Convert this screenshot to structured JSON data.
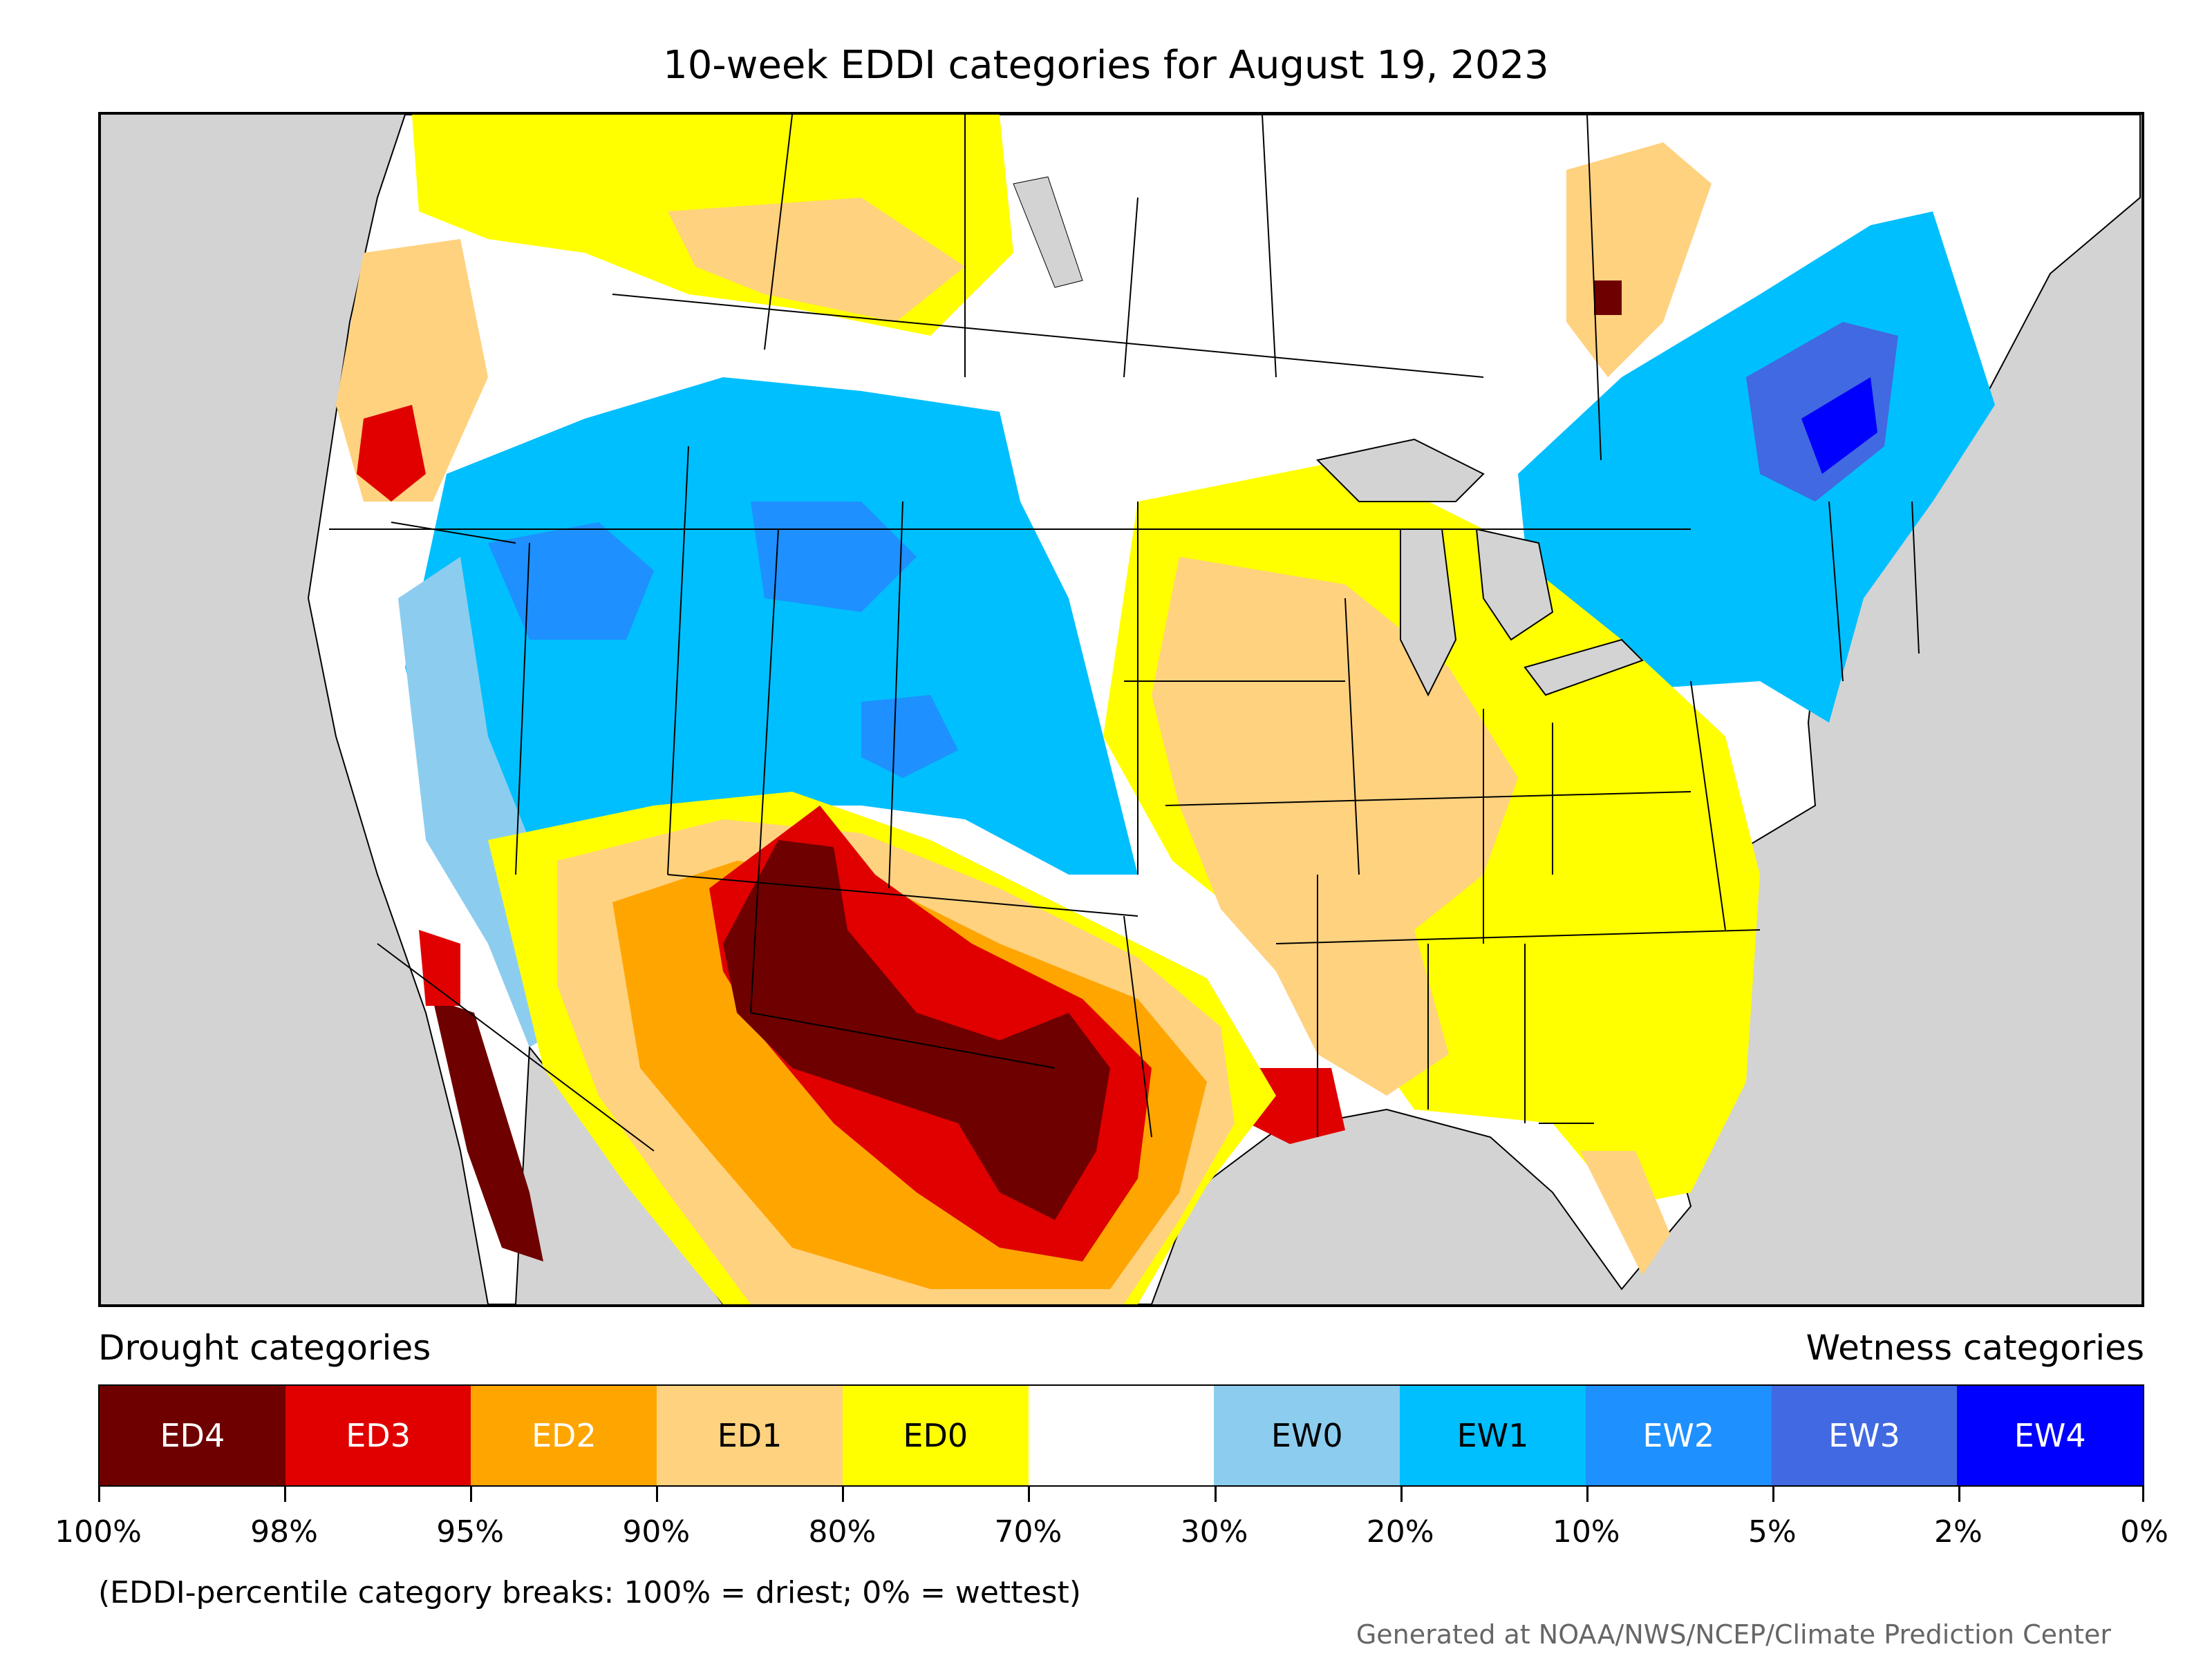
{
  "title": "10-week EDDI categories for August 19, 2023",
  "legend": {
    "drought_heading": "Drought categories",
    "wetness_heading": "Wetness categories",
    "categories": [
      {
        "label": "ED4",
        "color": "#6e0000",
        "text_color": "#ffffff"
      },
      {
        "label": "ED3",
        "color": "#e00000",
        "text_color": "#ffffff"
      },
      {
        "label": "ED2",
        "color": "#ffa500",
        "text_color": "#ffffff"
      },
      {
        "label": "ED1",
        "color": "#ffd27f",
        "text_color": "#000000"
      },
      {
        "label": "ED0",
        "color": "#ffff00",
        "text_color": "#000000"
      },
      {
        "label": "",
        "color": "#ffffff",
        "text_color": "#000000"
      },
      {
        "label": "EW0",
        "color": "#8ccdef",
        "text_color": "#000000"
      },
      {
        "label": "EW1",
        "color": "#00bfff",
        "text_color": "#000000"
      },
      {
        "label": "EW2",
        "color": "#1e90ff",
        "text_color": "#ffffff"
      },
      {
        "label": "EW3",
        "color": "#4169e1",
        "text_color": "#ffffff"
      },
      {
        "label": "EW4",
        "color": "#0000ff",
        "text_color": "#ffffff"
      }
    ],
    "tick_labels": [
      "100%",
      "98%",
      "95%",
      "90%",
      "80%",
      "70%",
      "30%",
      "20%",
      "10%",
      "5%",
      "2%",
      "0%"
    ]
  },
  "note": "(EDDI-percentile category breaks: 100% = driest; 0% = wettest)",
  "credit": "Generated at NOAA/NWS/NCEP/Climate Prediction Center",
  "map_colors": {
    "land_background": "#d3d3d3",
    "water": "#d3d3d3",
    "borders": "#000000"
  }
}
